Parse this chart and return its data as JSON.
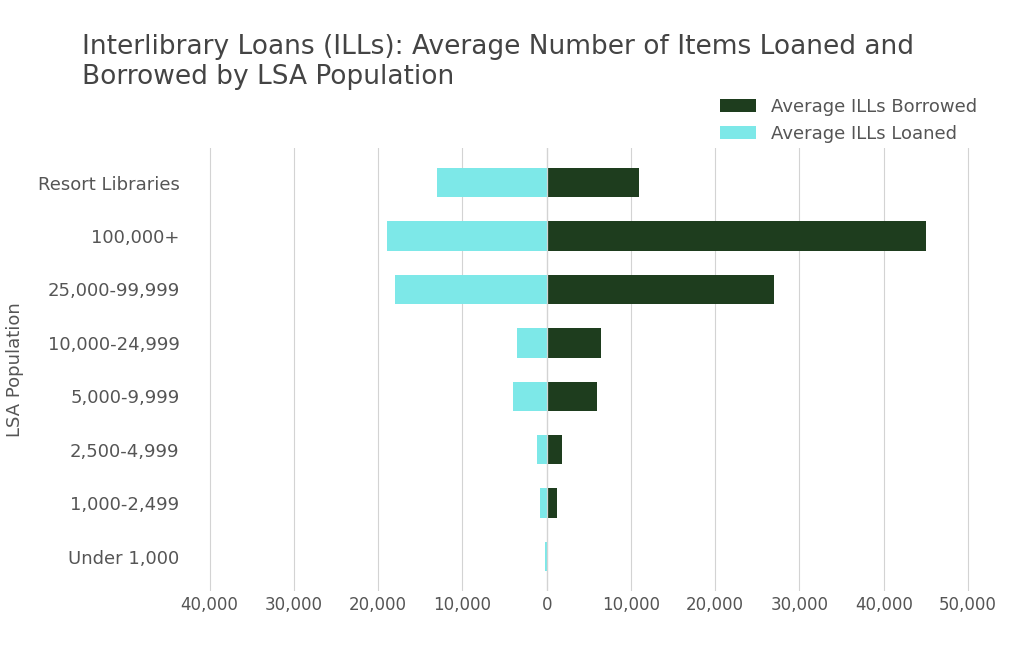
{
  "title": "Interlibrary Loans (ILLs): Average Number of Items Loaned and\nBorrowed by LSA Population",
  "ylabel": "LSA Population",
  "categories": [
    "Under 1,000",
    "1,000-2,499",
    "2,500-4,999",
    "5,000-9,999",
    "10,000-24,999",
    "25,000-99,999",
    "100,000+",
    "Resort Libraries"
  ],
  "loaned": [
    -200,
    -800,
    -1200,
    -4000,
    -3500,
    -18000,
    -19000,
    -13000
  ],
  "borrowed": [
    0,
    1200,
    1800,
    6000,
    6500,
    27000,
    45000,
    11000
  ],
  "color_borrowed": "#1e3d1e",
  "color_loaned": "#7de8e8",
  "legend_borrowed": "Average ILLs Borrowed",
  "legend_loaned": "Average ILLs Loaned",
  "xlim": [
    -43000,
    53000
  ],
  "xticks": [
    -40000,
    -30000,
    -20000,
    -10000,
    0,
    10000,
    20000,
    30000,
    40000,
    50000
  ],
  "xtick_labels": [
    "40,000",
    "30,000",
    "20,000",
    "10,000",
    "0",
    "10,000",
    "20,000",
    "30,000",
    "40,000",
    "50,000"
  ],
  "background_color": "#ffffff",
  "bar_height": 0.55,
  "title_fontsize": 19,
  "axis_fontsize": 13,
  "tick_fontsize": 12
}
